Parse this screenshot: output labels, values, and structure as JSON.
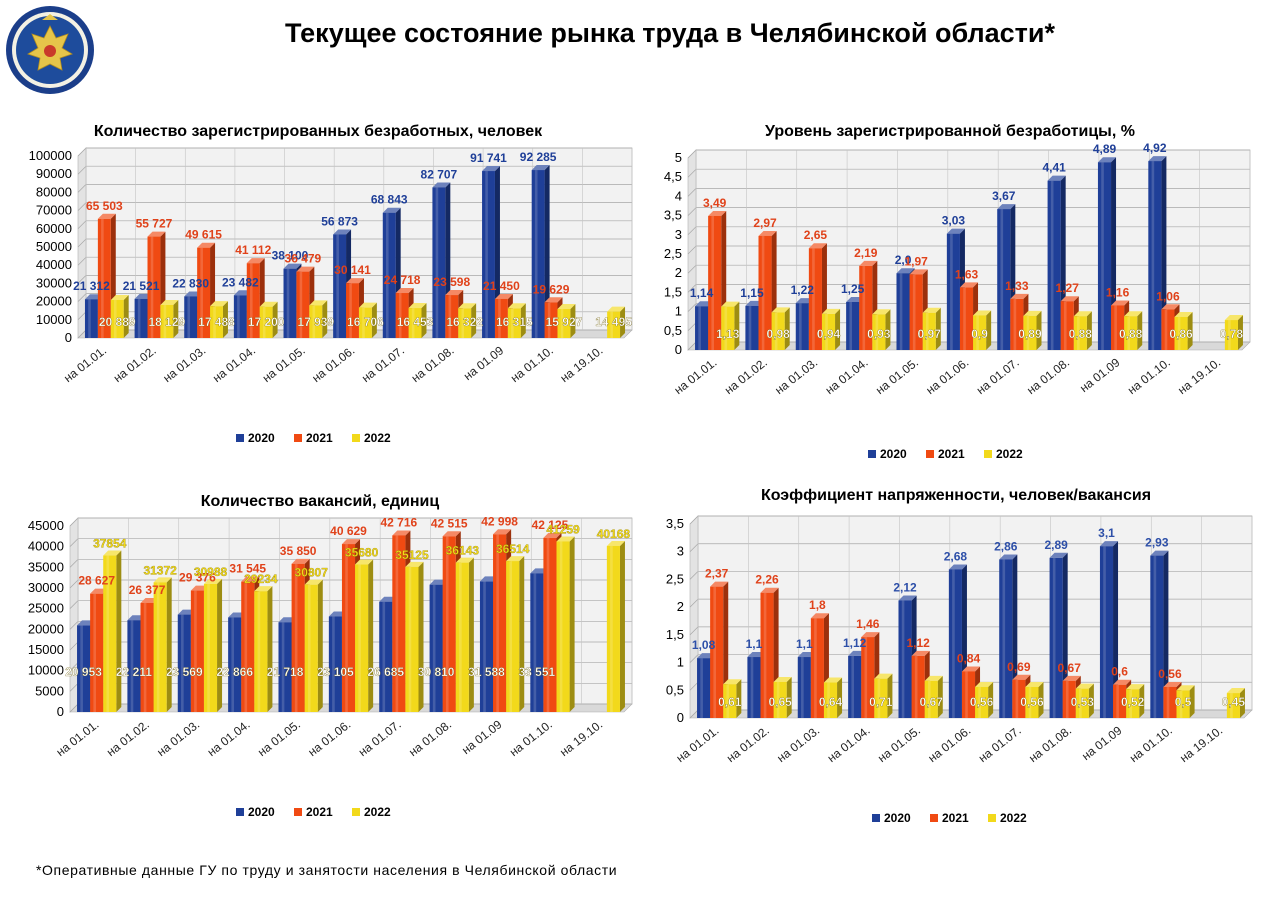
{
  "page": {
    "title": "Текущее состояние рынка труда в Челябинской области*",
    "footnote": "*Оперативные данные ГУ по труду и занятости населения в Челябинской области"
  },
  "colors": {
    "2020": "#1f3f98",
    "2021": "#f04a12",
    "2022": "#f2d91b"
  },
  "chart_data": [
    {
      "type": "bar",
      "title": "Количество зарегистрированных безработных, человек",
      "categories": [
        "на 01.01.",
        "на 01.02.",
        "на 01.03.",
        "на 01.04.",
        "на 01.05.",
        "на 01.06.",
        "на 01.07.",
        "на 01.08.",
        "на 01.09",
        "на 01.10.",
        "на 19.10."
      ],
      "ylim": [
        0,
        100000
      ],
      "yticks": [
        0,
        10000,
        20000,
        30000,
        40000,
        50000,
        60000,
        70000,
        80000,
        90000,
        100000
      ],
      "legend": "bottom",
      "series": [
        {
          "name": "2020",
          "values": [
            21312,
            21521,
            22830,
            23482,
            38100,
            56873,
            68843,
            82707,
            91741,
            92285,
            null
          ],
          "labels": [
            "21 312",
            "21 521",
            "22 830",
            "23 482",
            "38 100",
            "56 873",
            "68 843",
            "82 707",
            "91 741",
            "92 285",
            ""
          ]
        },
        {
          "name": "2021",
          "values": [
            65503,
            55727,
            49615,
            41112,
            36479,
            30141,
            24718,
            23598,
            21450,
            19629,
            null
          ],
          "labels": [
            "65 503",
            "55 727",
            "49 615",
            "41 112",
            "36 479",
            "30 141",
            "24 718",
            "23 598",
            "21 450",
            "19 629",
            ""
          ]
        },
        {
          "name": "2022",
          "values": [
            20889,
            18129,
            17488,
            17200,
            17939,
            16706,
            16453,
            16322,
            16315,
            15927,
            14495
          ],
          "labels": [
            "20 889",
            "18 129",
            "17 488",
            "17 200",
            "17 939",
            "16 706",
            "16 453",
            "16 322",
            "16 315",
            "15 927",
            "14 495"
          ]
        }
      ]
    },
    {
      "type": "bar",
      "title": "Уровень зарегистрированной безработицы, %",
      "categories": [
        "на 01.01.",
        "на 01.02.",
        "на 01.03.",
        "на 01.04.",
        "на 01.05.",
        "на 01.06.",
        "на 01.07.",
        "на 01.08.",
        "на 01.09",
        "на 01.10.",
        "на 19.10."
      ],
      "ylim": [
        0,
        5
      ],
      "yticks": [
        "0",
        "0,5",
        "1",
        "1,5",
        "2",
        "2,5",
        "3",
        "3,5",
        "4",
        "4,5",
        "5"
      ],
      "legend": "bottom",
      "series": [
        {
          "name": "2020",
          "values": [
            1.14,
            1.15,
            1.22,
            1.25,
            2.0,
            3.03,
            3.67,
            4.41,
            4.89,
            4.92,
            null
          ],
          "labels": [
            "1,14",
            "1,15",
            "1,22",
            "1,25",
            "2,0",
            "3,03",
            "3,67",
            "4,41",
            "4,89",
            "4,92",
            ""
          ]
        },
        {
          "name": "2021",
          "values": [
            3.49,
            2.97,
            2.65,
            2.19,
            1.97,
            1.63,
            1.33,
            1.27,
            1.16,
            1.06,
            null
          ],
          "labels": [
            "3,49",
            "2,97",
            "2,65",
            "2,19",
            "1,97",
            "1,63",
            "1,33",
            "1,27",
            "1,16",
            "1,06",
            ""
          ]
        },
        {
          "name": "2022",
          "values": [
            1.13,
            0.98,
            0.94,
            0.93,
            0.97,
            0.9,
            0.89,
            0.88,
            0.88,
            0.86,
            0.78
          ],
          "labels": [
            "1,13",
            "0,98",
            "0,94",
            "0,93",
            "0,97",
            "0,9",
            "0,89",
            "0,88",
            "0,88",
            "0,86",
            "0,78"
          ]
        }
      ]
    },
    {
      "type": "bar",
      "title": "Количество вакансий, единиц",
      "categories": [
        "на 01.01.",
        "на 01.02.",
        "на 01.03.",
        "на 01.04.",
        "на 01.05.",
        "на 01.06.",
        "на 01.07.",
        "на 01.08.",
        "на 01.09",
        "на 01.10.",
        "на 19.10."
      ],
      "ylim": [
        0,
        45000
      ],
      "yticks": [
        0,
        5000,
        10000,
        15000,
        20000,
        25000,
        30000,
        35000,
        40000,
        45000
      ],
      "legend": "bottom",
      "series": [
        {
          "name": "2020",
          "values": [
            20953,
            22211,
            23569,
            22866,
            21718,
            23105,
            26685,
            30810,
            31588,
            33551,
            null
          ],
          "labels": [
            "20 953",
            "22 211",
            "23 569",
            "22 866",
            "21 718",
            "23 105",
            "26 685",
            "30 810",
            "31 588",
            "33 551",
            ""
          ]
        },
        {
          "name": "2021",
          "values": [
            28627,
            26377,
            29376,
            31545,
            35850,
            40629,
            42716,
            42515,
            42998,
            42125,
            null
          ],
          "labels": [
            "28 627",
            "26 377",
            "29 376",
            "31 545",
            "35 850",
            "40 629",
            "42 716",
            "42 515",
            "42 998",
            "42 125",
            ""
          ]
        },
        {
          "name": "2022",
          "values": [
            37854,
            31372,
            30988,
            29234,
            30807,
            35680,
            35125,
            36143,
            36514,
            41259,
            40168
          ],
          "labels": [
            "37854",
            "31372",
            "30988",
            "29234",
            "30807",
            "35680",
            "35125",
            "36143",
            "36514",
            "41259",
            "40168"
          ]
        }
      ]
    },
    {
      "type": "bar",
      "title": "Коэффициент напряженности, человек/вакансия",
      "categories": [
        "на 01.01.",
        "на 01.02.",
        "на 01.03.",
        "на 01.04.",
        "на 01.05.",
        "на 01.06.",
        "на 01.07.",
        "на 01.08.",
        "на 01.09",
        "на 01.10.",
        "на 19.10."
      ],
      "ylim": [
        0,
        3.5
      ],
      "yticks": [
        "0",
        "0,5",
        "1",
        "1,5",
        "2",
        "2,5",
        "3",
        "3,5"
      ],
      "legend": "bottom",
      "series": [
        {
          "name": "2020",
          "values": [
            1.08,
            1.1,
            1.1,
            1.12,
            2.12,
            2.68,
            2.86,
            2.89,
            3.1,
            2.93,
            null
          ],
          "labels": [
            "1,08",
            "1,1",
            "1,1",
            "1,12",
            "2,12",
            "2,68",
            "2,86",
            "2,89",
            "3,1",
            "2,93",
            ""
          ]
        },
        {
          "name": "2021",
          "values": [
            2.37,
            2.26,
            1.8,
            1.46,
            1.12,
            0.84,
            0.69,
            0.67,
            0.6,
            0.56,
            null
          ],
          "labels": [
            "2,37",
            "2,26",
            "1,8",
            "1,46",
            "1,12",
            "0,84",
            "0,69",
            "0,67",
            "0,6",
            "0,56",
            ""
          ]
        },
        {
          "name": "2022",
          "values": [
            0.61,
            0.65,
            0.64,
            0.71,
            0.67,
            0.56,
            0.56,
            0.53,
            0.52,
            0.5,
            0.45
          ],
          "labels": [
            "0,61",
            "0,65",
            "0,64",
            "0,71",
            "0,67",
            "0,56",
            "0,56",
            "0,53",
            "0,52",
            "0,5",
            "0,45"
          ]
        }
      ]
    }
  ]
}
